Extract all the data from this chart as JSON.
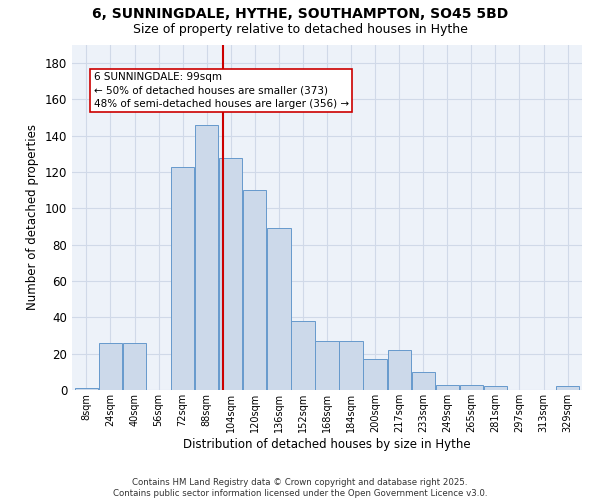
{
  "title_line1": "6, SUNNINGDALE, HYTHE, SOUTHAMPTON, SO45 5BD",
  "title_line2": "Size of property relative to detached houses in Hythe",
  "xlabel": "Distribution of detached houses by size in Hythe",
  "ylabel": "Number of detached properties",
  "bar_labels": [
    "8sqm",
    "24sqm",
    "40sqm",
    "56sqm",
    "72sqm",
    "88sqm",
    "104sqm",
    "120sqm",
    "136sqm",
    "152sqm",
    "168sqm",
    "184sqm",
    "200sqm",
    "217sqm",
    "233sqm",
    "249sqm",
    "265sqm",
    "281sqm",
    "297sqm",
    "313sqm",
    "329sqm"
  ],
  "bar_values": [
    1,
    26,
    26,
    0,
    123,
    146,
    128,
    110,
    89,
    38,
    27,
    27,
    17,
    22,
    10,
    3,
    3,
    2,
    0,
    0,
    2
  ],
  "bar_color": "#ccd9ea",
  "bar_edge_color": "#6699cc",
  "grid_color": "#d0d9e8",
  "background_color": "#edf2f9",
  "vline_x_index": 5.6875,
  "vline_color": "#cc0000",
  "annotation_text": "6 SUNNINGDALE: 99sqm\n← 50% of detached houses are smaller (373)\n48% of semi-detached houses are larger (356) →",
  "annotation_box_color": "#ffffff",
  "annotation_border_color": "#cc0000",
  "ylim": [
    0,
    190
  ],
  "yticks": [
    0,
    20,
    40,
    60,
    80,
    100,
    120,
    140,
    160,
    180
  ],
  "footer_text": "Contains HM Land Registry data © Crown copyright and database right 2025.\nContains public sector information licensed under the Open Government Licence v3.0.",
  "bin_width": 1.0,
  "n_bins": 21
}
